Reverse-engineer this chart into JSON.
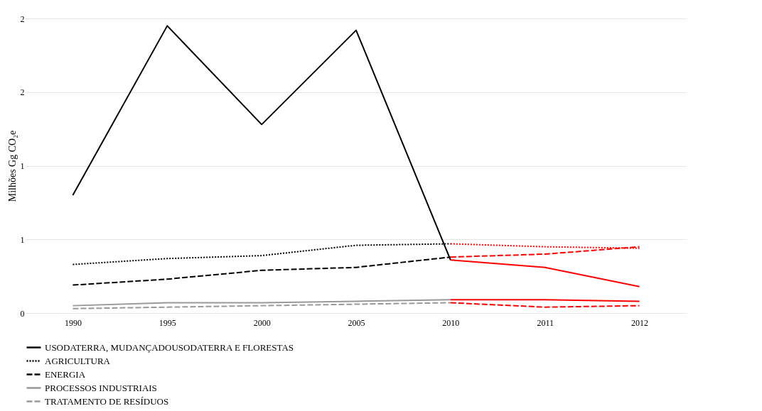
{
  "chart_data": {
    "type": "line",
    "ylabel": "Milhões Gg CO₂e",
    "categories": [
      "1990",
      "1995",
      "2000",
      "2005",
      "2010",
      "2011",
      "2012"
    ],
    "ylim": [
      0,
      2
    ],
    "yticks": [
      0,
      {
        "value": 0.5,
        "label": "1"
      },
      1,
      {
        "value": 1.5,
        "label": "2"
      },
      2
    ],
    "grid": "y",
    "legend": "bottom",
    "series": [
      {
        "name": "USODATERRA, MUDANÇADOUSODATERRA E FLORESTAS",
        "color": "#000000",
        "line_style": "solid",
        "values": [
          0.8,
          1.95,
          1.28,
          1.92,
          0.36,
          null,
          null
        ]
      },
      {
        "name": "AGRICULTURA",
        "color": "#000000",
        "line_style": "dotted",
        "values": [
          0.33,
          0.37,
          0.39,
          0.46,
          0.47,
          null,
          null
        ]
      },
      {
        "name": "ENERGIA",
        "color": "#000000",
        "line_style": "dashed",
        "values": [
          0.19,
          0.23,
          0.29,
          0.31,
          0.38,
          null,
          null
        ]
      },
      {
        "name": "PROCESSOS INDUSTRIAIS",
        "color": "#999999",
        "line_style": "solid",
        "values": [
          0.05,
          0.07,
          0.07,
          0.08,
          0.09,
          null,
          null
        ]
      },
      {
        "name": "TRATAMENTO DE RESÍDUOS",
        "color": "#999999",
        "line_style": "dashed",
        "values": [
          0.03,
          0.04,
          0.05,
          0.06,
          0.07,
          null,
          null
        ]
      },
      {
        "color": "#ff0000",
        "line_style": "solid",
        "values": [
          null,
          null,
          null,
          null,
          0.36,
          0.31,
          0.18
        ]
      },
      {
        "color": "#ff0000",
        "line_style": "dotted",
        "values": [
          null,
          null,
          null,
          null,
          0.47,
          0.45,
          0.44
        ]
      },
      {
        "color": "#ff0000",
        "line_style": "dashed",
        "values": [
          null,
          null,
          null,
          null,
          0.38,
          0.4,
          0.45
        ]
      },
      {
        "color": "#ff0000",
        "line_style": "solid",
        "values": [
          null,
          null,
          null,
          null,
          0.09,
          0.09,
          0.08
        ]
      },
      {
        "color": "#ff0000",
        "line_style": "dashed",
        "values": [
          null,
          null,
          null,
          null,
          0.07,
          0.04,
          0.05
        ]
      }
    ]
  }
}
